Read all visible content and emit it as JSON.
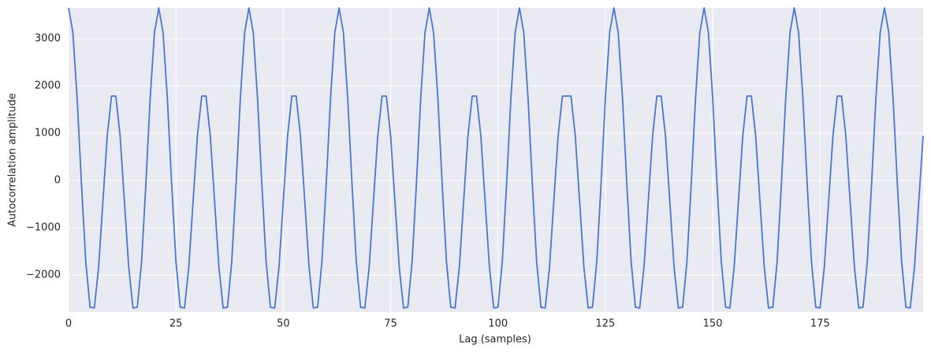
{
  "chart_data": {
    "type": "line",
    "x_label": "Lag (samples)",
    "y_label": "Autocorrelation amplitude",
    "x": [
      0,
      1,
      2,
      3,
      4,
      5,
      6,
      7,
      8,
      9,
      10,
      11,
      12,
      13,
      14,
      15,
      16,
      17,
      18,
      19,
      20,
      21,
      22,
      23,
      24,
      25,
      26,
      27,
      28,
      29,
      30,
      31,
      32,
      33,
      34,
      35,
      36,
      37,
      38,
      39,
      40,
      41,
      42,
      43,
      44,
      45,
      46,
      47,
      48,
      49,
      50,
      51,
      52,
      53,
      54,
      55,
      56,
      57,
      58,
      59,
      60,
      61,
      62,
      63,
      64,
      65,
      66,
      67,
      68,
      69,
      70,
      71,
      72,
      73,
      74,
      75,
      76,
      77,
      78,
      79,
      80,
      81,
      82,
      83,
      84,
      85,
      86,
      87,
      88,
      89,
      90,
      91,
      92,
      93,
      94,
      95,
      96,
      97,
      98,
      99,
      100,
      101,
      102,
      103,
      104,
      105,
      106,
      107,
      108,
      109,
      110,
      111,
      112,
      113,
      114,
      115,
      116,
      117,
      118,
      119,
      120,
      121,
      122,
      123,
      124,
      125,
      126,
      127,
      128,
      129,
      130,
      131,
      132,
      133,
      134,
      135,
      136,
      137,
      138,
      139,
      140,
      141,
      142,
      143,
      144,
      145,
      146,
      147,
      148,
      149,
      150,
      151,
      152,
      153,
      154,
      155,
      156,
      157,
      158,
      159,
      160,
      161,
      162,
      163,
      164,
      165,
      166,
      167,
      168,
      169,
      170,
      171,
      172,
      173,
      174,
      175,
      176,
      177,
      178,
      179,
      180,
      181,
      182,
      183,
      184,
      185,
      186,
      187,
      188,
      189,
      190,
      191,
      192,
      193,
      194,
      195,
      196,
      197,
      198,
      199
    ],
    "series": [
      {
        "color": "#4878d0",
        "values": [
          3650,
          3129,
          1737,
          -71,
          -1714,
          -2679,
          -2695,
          -1826,
          -434,
          942,
          1787,
          1787,
          942,
          -434,
          -1826,
          -2695,
          -2679,
          -1714,
          -71,
          1737,
          3129,
          3650,
          3129,
          1737,
          -71,
          -1714,
          -2679,
          -2695,
          -1826,
          -434,
          942,
          1787,
          1787,
          942,
          -434,
          -1826,
          -2695,
          -2679,
          -1714,
          -71,
          1737,
          3129,
          3650,
          3129,
          1737,
          -71,
          -1714,
          -2679,
          -2695,
          -1826,
          -434,
          942,
          1787,
          1787,
          942,
          -434,
          -1826,
          -2695,
          -2679,
          -1714,
          -71,
          1737,
          3129,
          3650,
          3129,
          1737,
          -71,
          -1714,
          -2679,
          -2695,
          -1826,
          -434,
          942,
          1787,
          1787,
          942,
          -434,
          -1826,
          -2695,
          -2679,
          -1714,
          -71,
          1737,
          3129,
          3650,
          3129,
          1737,
          -71,
          -1714,
          -2679,
          -2695,
          -1826,
          -434,
          942,
          1787,
          1787,
          942,
          -434,
          -1826,
          -2695,
          -2679,
          -1714,
          -71,
          1737,
          3129,
          3650,
          3129,
          1737,
          -71,
          -1714,
          -2679,
          -2695,
          -1826,
          -434,
          942,
          1787,
          1787,
          1787,
          942,
          -434,
          -1826,
          -2695,
          -2679,
          -1714,
          -71,
          1737,
          3129,
          3650,
          3129,
          1737,
          -71,
          -1714,
          -2679,
          -2695,
          -1826,
          -434,
          942,
          1787,
          1787,
          942,
          -434,
          -1826,
          -2695,
          -2679,
          -1714,
          -71,
          1737,
          3129,
          3650,
          3129,
          1737,
          -71,
          -1714,
          -2679,
          -2695,
          -1826,
          -434,
          942,
          1787,
          1787,
          942,
          -434,
          -1826,
          -2695,
          -2679,
          -1714,
          -71,
          1737,
          3129,
          3650,
          3129,
          1737,
          -71,
          -1714,
          -2679,
          -2695,
          -1826,
          -434,
          942,
          1787,
          1787,
          942,
          -434,
          -1826,
          -2695,
          -2679,
          -1714,
          -71,
          1737,
          3129,
          3650,
          3129,
          1737,
          -71,
          -1714,
          -2679,
          -2695,
          -1826,
          -434,
          942
        ]
      }
    ],
    "xlim": [
      0,
      199
    ],
    "ylim": [
      -2780,
      3650
    ],
    "xticks": [
      0,
      25,
      50,
      75,
      100,
      125,
      150,
      175
    ],
    "yticks": [
      {
        "value": -2000,
        "label": "−2000"
      },
      {
        "value": -1000,
        "label": "−1000"
      },
      0,
      1000,
      2000,
      3000
    ],
    "grid": true
  }
}
